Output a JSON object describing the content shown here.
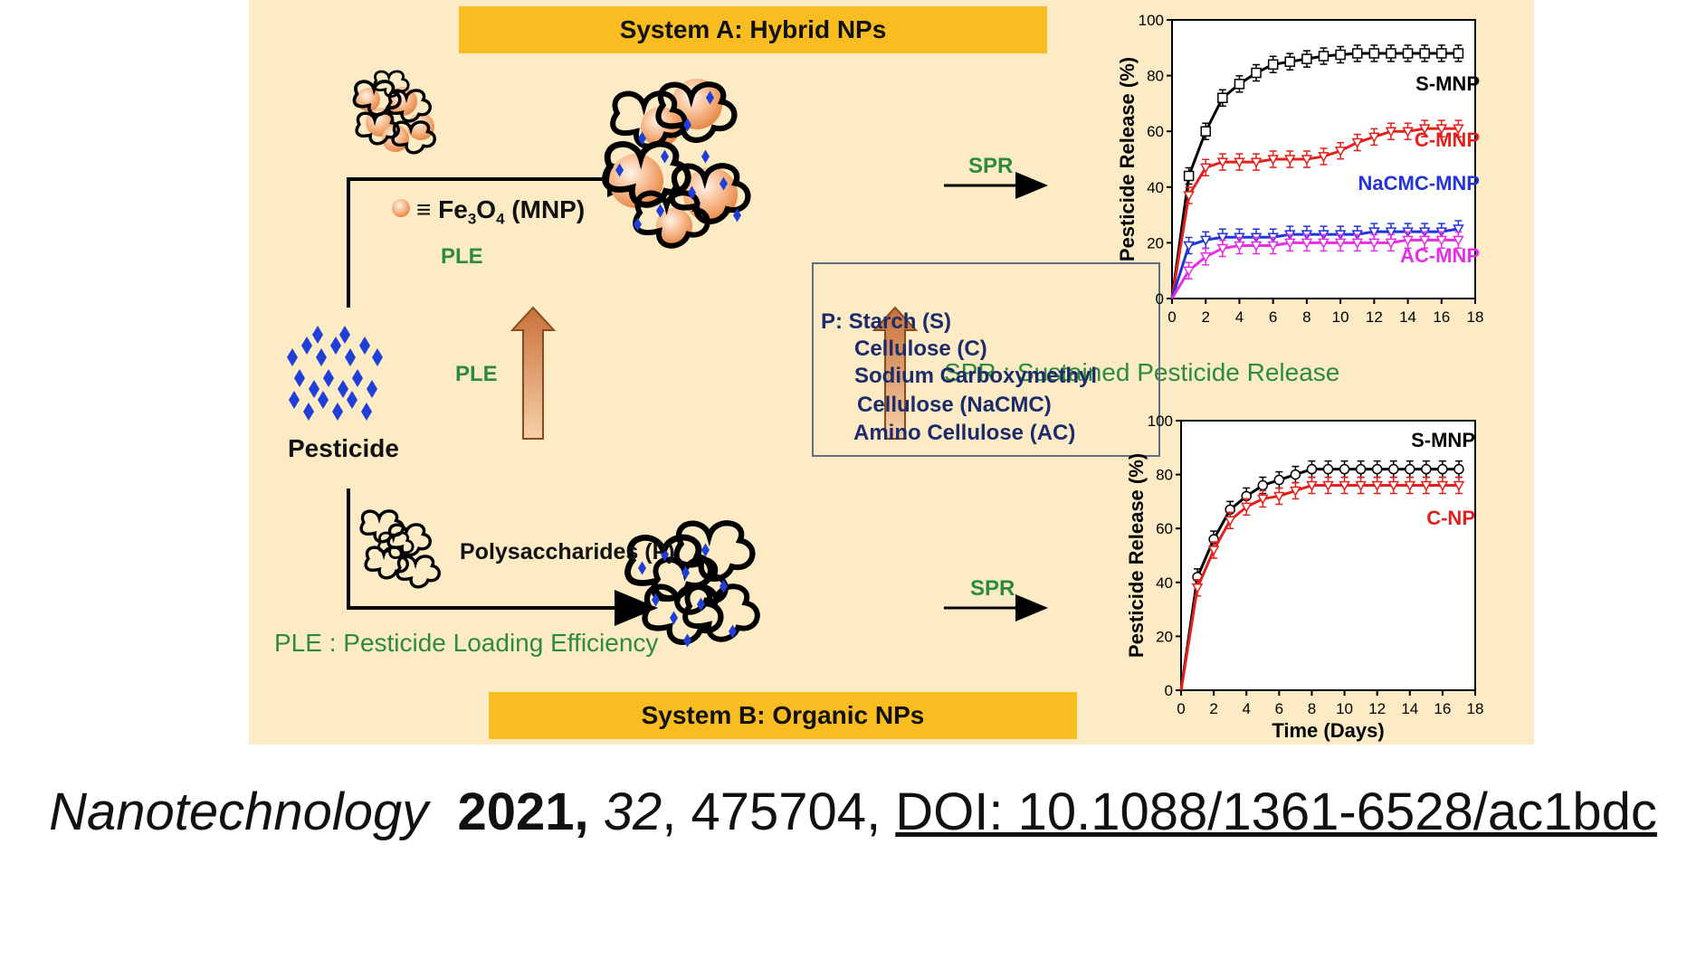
{
  "systemA": {
    "title": "System A: Hybrid NPs"
  },
  "systemB": {
    "title": "System B: Organic NPs"
  },
  "labels": {
    "mnp_equiv": "≡",
    "fe3o4_main": "Fe",
    "fe3o4_sub3": "3",
    "fe3o4_o": "O",
    "fe3o4_sub4": "4",
    "fe3o4_tail": " (MNP)",
    "ple_top": "PLE",
    "ple_mid": "PLE",
    "spr_top": "SPR",
    "spr_bottom": "SPR",
    "pesticide": "Pesticide",
    "polysaccharides": "Polysaccharides (P)",
    "ple_legend": "PLE : Pesticide Loading Efficiency",
    "spr_legend": "SPR : Sustained Pesticide Release"
  },
  "polymers_box": {
    "lines": [
      "P: Starch (S)",
      "Cellulose (C)",
      "Sodium Carboxymethyl",
      "Cellulose (NaCMC)",
      "Amino Cellulose (AC)"
    ]
  },
  "colors": {
    "panel_bg": "#fcebc4",
    "banner": "#f9bd22",
    "green_text": "#2e8b3d",
    "navy_text": "#1b2b6b",
    "pesticide_blue": "#1f3fd6",
    "arrow_orange": "#c9713a"
  },
  "chart_data": [
    {
      "type": "line",
      "ylabel": "Pesticide Release (%)",
      "xlabel": "",
      "xlim": [
        0,
        18
      ],
      "ylim": [
        0,
        100
      ],
      "xticks": [
        "0",
        "2",
        "4",
        "6",
        "8",
        "10",
        "12",
        "14",
        "16",
        "18"
      ],
      "yticks": [
        "0",
        "20",
        "40",
        "60",
        "80",
        "100"
      ],
      "x": [
        0,
        1,
        2,
        3,
        4,
        5,
        6,
        7,
        8,
        9,
        10,
        11,
        12,
        13,
        14,
        15,
        16,
        17
      ],
      "series": [
        {
          "name": "S-MNP",
          "color": "#000000",
          "values": [
            0,
            44,
            60,
            72,
            77,
            81,
            84,
            85,
            86,
            87,
            87.5,
            88,
            88,
            88,
            88,
            88,
            88,
            88
          ]
        },
        {
          "name": "C-MNP",
          "color": "#e3201b",
          "values": [
            0,
            37,
            47,
            49,
            49,
            49,
            50,
            50,
            50,
            51,
            53,
            56,
            58,
            60,
            60,
            61,
            61,
            61
          ]
        },
        {
          "name": "NaCMC-MNP",
          "color": "#2233d8",
          "values": [
            0,
            19,
            21,
            22,
            22,
            22,
            22,
            23,
            23,
            23,
            23,
            23,
            24,
            24,
            24,
            24,
            24,
            25
          ]
        },
        {
          "name": "AC-MNP",
          "color": "#e62ee6",
          "values": [
            0,
            10,
            15,
            18,
            19,
            19,
            19,
            20,
            20,
            20,
            20,
            20,
            20,
            20,
            21,
            21,
            21,
            21
          ]
        }
      ]
    },
    {
      "type": "line",
      "ylabel": "Pesticide Release (%)",
      "xlabel": "Time (Days)",
      "xlim": [
        0,
        18
      ],
      "ylim": [
        0,
        100
      ],
      "xticks": [
        "0",
        "2",
        "4",
        "6",
        "8",
        "10",
        "12",
        "14",
        "16",
        "18"
      ],
      "yticks": [
        "0",
        "20",
        "40",
        "60",
        "80",
        "100"
      ],
      "x": [
        0,
        1,
        2,
        3,
        4,
        5,
        6,
        7,
        8,
        9,
        10,
        11,
        12,
        13,
        14,
        15,
        16,
        17
      ],
      "series": [
        {
          "name": "S-MNP",
          "color": "#000000",
          "values": [
            0,
            42,
            56,
            67,
            72,
            76,
            78,
            80,
            82,
            82,
            82,
            82,
            82,
            82,
            82,
            82,
            82,
            82
          ]
        },
        {
          "name": "C-NP",
          "color": "#e3201b",
          "values": [
            0,
            38,
            52,
            63,
            68,
            71,
            72,
            74,
            76,
            76,
            76,
            76,
            76,
            76,
            76,
            76,
            76,
            76
          ]
        }
      ]
    }
  ],
  "citation": {
    "journal": "Nanotechnology",
    "year": "2021,",
    "volume": "32",
    "article": ", 475704, ",
    "doi": "DOI: 10.1088/1361-6528/ac1bdc"
  }
}
